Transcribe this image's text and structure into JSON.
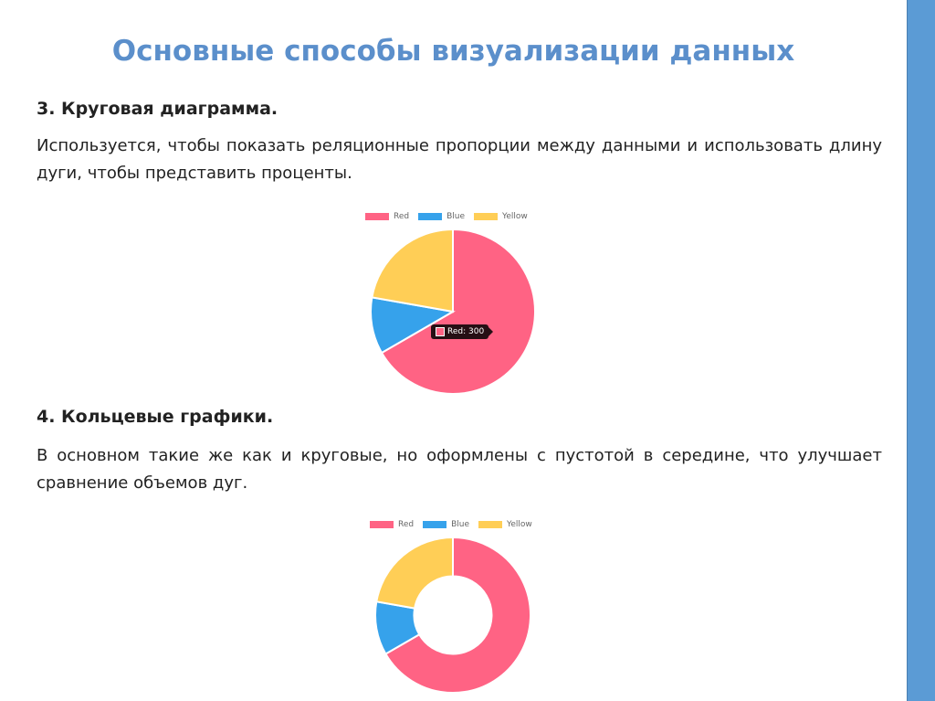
{
  "slide": {
    "title": "Основные способы визуализации данных",
    "section3": {
      "heading": "3. Круговая диаграмма.",
      "text": "Используется, чтобы показать реляционные пропорции между данными и использовать длину дуги, чтобы представить проценты."
    },
    "section4": {
      "heading": "4. Кольцевые графики.",
      "text": "В основном такие же как и круговые, но оформлены с пустотой в середине, что улучшает сравнение объемов дуг."
    },
    "accent_bar_color": "#5b9bd5"
  },
  "legend": [
    {
      "label": "Red",
      "color": "#ff6384"
    },
    {
      "label": "Blue",
      "color": "#36a2eb"
    },
    {
      "label": "Yellow",
      "color": "#ffce56"
    }
  ],
  "tooltip": {
    "text": "Red: 300"
  },
  "chart_data": [
    {
      "type": "pie",
      "title": "",
      "categories": [
        "Red",
        "Blue",
        "Yellow"
      ],
      "values": [
        300,
        50,
        100
      ],
      "colors": [
        "#ff6384",
        "#36a2eb",
        "#ffce56"
      ],
      "legend_position": "top",
      "tooltip": "Red: 300"
    },
    {
      "type": "doughnut",
      "title": "",
      "categories": [
        "Red",
        "Blue",
        "Yellow"
      ],
      "values": [
        300,
        50,
        100
      ],
      "colors": [
        "#ff6384",
        "#36a2eb",
        "#ffce56"
      ],
      "legend_position": "top"
    }
  ]
}
